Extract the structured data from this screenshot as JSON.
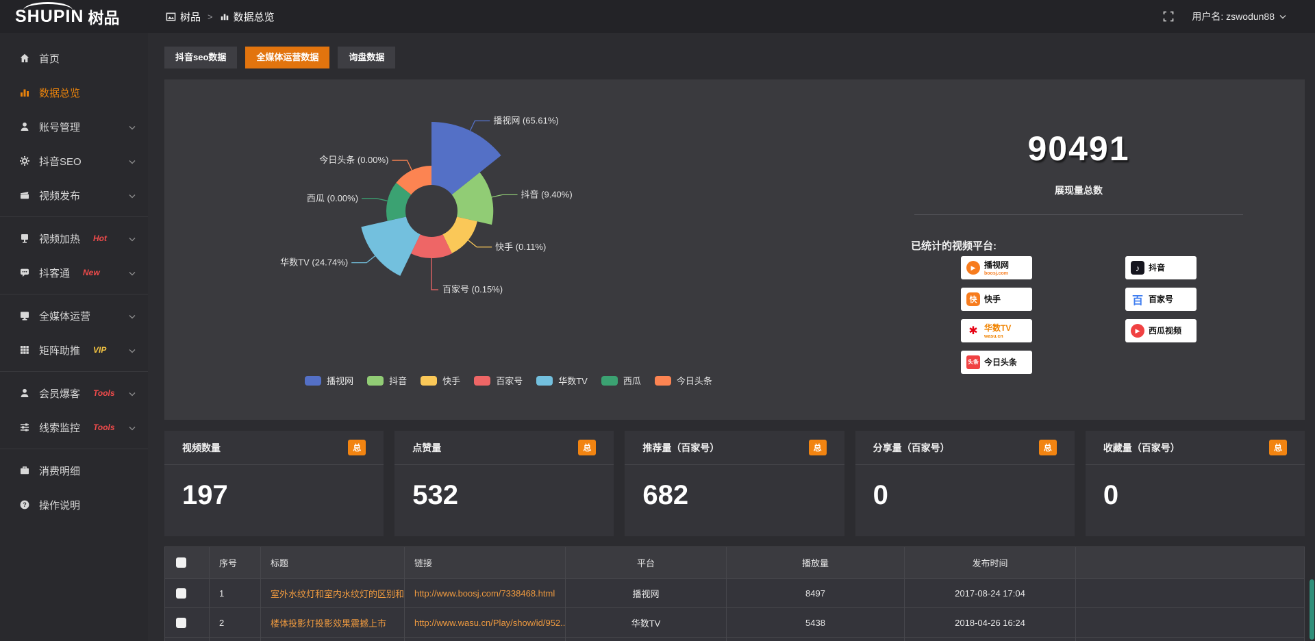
{
  "header": {
    "logo_main": "SHUPIN",
    "logo_suffix": "树品",
    "breadcrumb": {
      "root": "树品",
      "sep": ">",
      "current": "数据总览"
    },
    "username": "用户名: zswodun88"
  },
  "sidebar": {
    "items": [
      {
        "label": "首页",
        "icon": "home"
      },
      {
        "label": "数据总览",
        "icon": "chart",
        "active": true
      },
      {
        "label": "账号管理",
        "icon": "user",
        "chevron": true
      },
      {
        "label": "抖音SEO",
        "icon": "gear",
        "chevron": true
      },
      {
        "label": "视频发布",
        "icon": "publish",
        "chevron": true
      },
      {
        "divider": true
      },
      {
        "label": "视频加热",
        "icon": "heat",
        "badge": "Hot",
        "badge_color": "#f04b4b",
        "chevron": true
      },
      {
        "label": "抖客通",
        "icon": "chat",
        "badge": "New",
        "badge_color": "#f04b4b",
        "chevron": true
      },
      {
        "divider": true
      },
      {
        "label": "全媒体运营",
        "icon": "monitor",
        "chevron": true
      },
      {
        "label": "矩阵助推",
        "icon": "grid",
        "badge": "VIP",
        "badge_color": "#f5c542",
        "chevron": true
      },
      {
        "divider": true
      },
      {
        "label": "会员爆客",
        "icon": "user2",
        "badge": "Tools",
        "badge_color": "#f04b4b",
        "chevron": true
      },
      {
        "label": "线索监控",
        "icon": "sliders",
        "badge": "Tools",
        "badge_color": "#f04b4b",
        "chevron": true
      },
      {
        "divider": true
      },
      {
        "label": "消费明细",
        "icon": "wallet"
      },
      {
        "label": "操作说明",
        "icon": "question"
      }
    ]
  },
  "tabs": [
    {
      "label": "抖音seo数据",
      "active": false
    },
    {
      "label": "全媒体运营数据",
      "active": true
    },
    {
      "label": "询盘数据",
      "active": false
    }
  ],
  "chart_data": {
    "type": "pie",
    "variant": "rose",
    "legend_position": "bottom",
    "label_format": "{name} ({pct}%)",
    "items": [
      {
        "name": "播视网",
        "pct": 65.61,
        "color": "#5470c6"
      },
      {
        "name": "抖音",
        "pct": 9.4,
        "color": "#91cc75"
      },
      {
        "name": "快手",
        "pct": 0.11,
        "color": "#fac858"
      },
      {
        "name": "百家号",
        "pct": 0.15,
        "color": "#ee6666"
      },
      {
        "name": "华数TV",
        "pct": 24.74,
        "color": "#73c0de"
      },
      {
        "name": "西瓜",
        "pct": 0.0,
        "color": "#3ba272"
      },
      {
        "name": "今日头条",
        "pct": 0.0,
        "color": "#fc8452"
      }
    ],
    "legend": [
      "播视网",
      "抖音",
      "快手",
      "百家号",
      "华数TV",
      "西瓜",
      "今日头条"
    ]
  },
  "summary": {
    "total": "90491",
    "total_label": "展现量总数",
    "platforms_title": "已统计的视频平台:",
    "platforms": [
      {
        "name": "播视网",
        "sub": "boosj.com",
        "sub_color": "#f77c1e",
        "icon": "boosj",
        "col": 0
      },
      {
        "name": "快手",
        "icon": "kuaishou",
        "col": 0
      },
      {
        "name": "华数TV",
        "sub": "wasu.cn",
        "sub_color": "#f08300",
        "name_color": "#f08300",
        "icon": "wasu",
        "col": 0
      },
      {
        "name": "今日头条",
        "icon": "toutiao",
        "col": 0
      },
      {
        "name": "抖音",
        "icon": "douyin",
        "col": 1
      },
      {
        "name": "百家号",
        "icon": "baijia",
        "col": 1
      },
      {
        "name": "西瓜视频",
        "icon": "xigua",
        "col": 1
      }
    ]
  },
  "stats": [
    {
      "label": "视频数量",
      "badge": "总",
      "value": "197"
    },
    {
      "label": "点赞量",
      "badge": "总",
      "value": "532"
    },
    {
      "label": "推荐量（百家号）",
      "badge": "总",
      "value": "682"
    },
    {
      "label": "分享量（百家号）",
      "badge": "总",
      "value": "0"
    },
    {
      "label": "收藏量（百家号）",
      "badge": "总",
      "value": "0"
    }
  ],
  "table": {
    "headers": [
      "",
      "序号",
      "标题",
      "链接",
      "平台",
      "播放量",
      "发布时间",
      ""
    ],
    "rows": [
      {
        "num": "1",
        "title": "室外水纹灯和室内水纹灯的区别和简介",
        "link": "http://www.boosj.com/7338468.html",
        "platform": "播视网",
        "plays": "8497",
        "time": "2017-08-24 17:04"
      },
      {
        "num": "2",
        "title": "楼体投影灯投影效果震撼上市",
        "link": "http://www.wasu.cn/Play/show/id/952...",
        "platform": "华数TV",
        "plays": "5438",
        "time": "2018-04-26 16:24"
      }
    ]
  }
}
